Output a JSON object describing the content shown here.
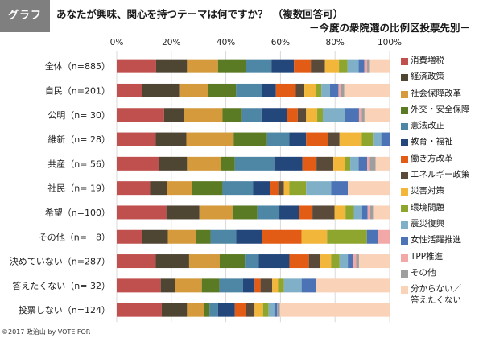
{
  "header": {
    "tag": "グラフ",
    "title": "あなたが興味、関心を持つテーマは何ですか？　（複数回答可）",
    "subtitle": "－今度の衆院選の比例区投票先別－"
  },
  "credit": "©2017 政治山 by VOTE FOR",
  "colors": [
    "#c0504d",
    "#4f4533",
    "#d49a3c",
    "#5a7a24",
    "#4e87a5",
    "#23477a",
    "#e35c16",
    "#5a4a3a",
    "#f2b63b",
    "#8ea52e",
    "#7fb0c8",
    "#4b73b5",
    "#f3a8a8",
    "#9e9e9e",
    "#f9d2b8"
  ],
  "chart_data": {
    "type": "bar",
    "orientation": "horizontal",
    "stacked": true,
    "title": "あなたが興味、関心を持つテーマは何ですか？　（複数回答可）",
    "subtitle": "－今度の衆院選の比例区投票先別－",
    "xlim": [
      0,
      100
    ],
    "xticks": [
      "0%",
      "20%",
      "40%",
      "60%",
      "80%",
      "100%"
    ],
    "legend_position": "right",
    "categories": [
      "全体（n=885）",
      "自民（n=201）",
      "公明（n= 30）",
      "維新（n= 28）",
      "共産（n= 56）",
      "社民（n= 19）",
      "希望（n=100）",
      "その他（n=　8）",
      "決めていない（n=287）",
      "答えたくない（n= 32）",
      "投票しない（n=124）"
    ],
    "series": [
      {
        "name": "消費増税",
        "values": [
          14,
          9,
          17,
          14,
          15,
          12,
          18,
          9,
          14,
          15,
          16
        ]
      },
      {
        "name": "経済政策",
        "values": [
          11,
          13,
          7,
          11,
          10,
          6,
          12,
          9,
          12,
          5,
          9
        ]
      },
      {
        "name": "社会保障改革",
        "values": [
          11,
          10,
          14,
          17,
          12,
          9,
          12,
          10,
          11,
          9,
          6
        ]
      },
      {
        "name": "外交・安全保障",
        "values": [
          10,
          10,
          7,
          12,
          5,
          11,
          9,
          5,
          9,
          6,
          2
        ]
      },
      {
        "name": "憲法改正",
        "values": [
          9,
          9,
          7,
          8,
          14,
          11,
          8,
          9,
          5,
          8,
          3
        ]
      },
      {
        "name": "教育・福祉",
        "values": [
          8,
          5,
          9,
          6,
          10,
          6,
          7,
          9,
          11,
          4,
          6
        ]
      },
      {
        "name": "働き方改革",
        "values": [
          6,
          7,
          4,
          8,
          5,
          3,
          5,
          14,
          7,
          2,
          4
        ]
      },
      {
        "name": "エネルギー政策",
        "values": [
          5,
          3,
          3,
          4,
          6,
          2,
          8,
          0,
          4,
          4,
          3
        ]
      },
      {
        "name": "災害対策",
        "values": [
          5,
          4,
          4,
          8,
          4,
          2,
          4,
          9,
          4,
          2,
          3
        ]
      },
      {
        "name": "環境問題",
        "values": [
          3,
          2,
          2,
          4,
          2,
          6,
          3,
          14,
          3,
          2,
          2
        ]
      },
      {
        "name": "震災復興",
        "values": [
          4,
          3,
          8,
          3,
          3,
          9,
          3,
          0,
          3,
          6,
          2
        ]
      },
      {
        "name": "女性活躍推進",
        "values": [
          2,
          3,
          5,
          3,
          3,
          6,
          2,
          4,
          2,
          5,
          1
        ]
      },
      {
        "name": "TPP推進",
        "values": [
          1,
          1,
          1,
          0,
          1,
          0,
          1,
          4,
          1,
          0,
          0
        ]
      },
      {
        "name": "その他",
        "values": [
          1,
          1,
          1,
          0,
          2,
          0,
          1,
          0,
          1,
          0,
          1
        ]
      },
      {
        "name": "分からない／\n答えたくない",
        "values": [
          7,
          16,
          9,
          0,
          5,
          15,
          6,
          0,
          11,
          25,
          39
        ]
      }
    ]
  }
}
